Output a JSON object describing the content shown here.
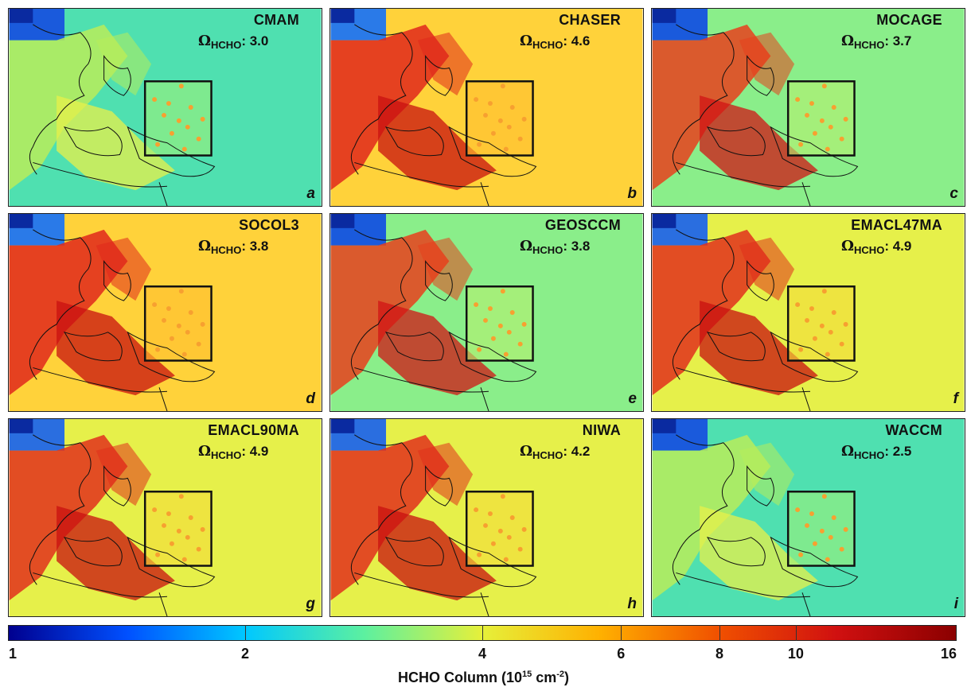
{
  "panels": [
    {
      "model": "CMAM",
      "omega_prefix": "Ω",
      "omega_sub": "HCHO",
      "omega_value": ": 3.0",
      "label": "a",
      "scheme": "cool"
    },
    {
      "model": "CHASER",
      "omega_prefix": "Ω",
      "omega_sub": "HCHO",
      "omega_value": ": 4.6",
      "label": "b",
      "scheme": "hot"
    },
    {
      "model": "MOCAGE",
      "omega_prefix": "Ω",
      "omega_sub": "HCHO",
      "omega_value": ": 3.7",
      "label": "c",
      "scheme": "mixed"
    },
    {
      "model": "SOCOL3",
      "omega_prefix": "Ω",
      "omega_sub": "HCHO",
      "omega_value": ": 3.8",
      "label": "d",
      "scheme": "hot"
    },
    {
      "model": "GEOSCCM",
      "omega_prefix": "Ω",
      "omega_sub": "HCHO",
      "omega_value": ": 3.8",
      "label": "e",
      "scheme": "mixed"
    },
    {
      "model": "EMACL47MA",
      "omega_prefix": "Ω",
      "omega_sub": "HCHO",
      "omega_value": ": 4.9",
      "label": "f",
      "scheme": "warm"
    },
    {
      "model": "EMACL90MA",
      "omega_prefix": "Ω",
      "omega_sub": "HCHO",
      "omega_value": ": 4.9",
      "label": "g",
      "scheme": "warm"
    },
    {
      "model": "NIWA",
      "omega_prefix": "Ω",
      "omega_sub": "HCHO",
      "omega_value": ": 4.2",
      "label": "h",
      "scheme": "warm"
    },
    {
      "model": "WACCM",
      "omega_prefix": "Ω",
      "omega_sub": "HCHO",
      "omega_value": ": 2.5",
      "label": "i",
      "scheme": "cool"
    }
  ],
  "colorbar": {
    "ticks": [
      "1",
      "2",
      "4",
      "6",
      "8",
      "10",
      "16"
    ],
    "tick_values": [
      1,
      2,
      4,
      6,
      8,
      10,
      16
    ],
    "title_prefix": "HCHO Column (10",
    "title_exp1": "15",
    "title_mid": " cm",
    "title_exp2": "-2",
    "title_suffix": ")",
    "colors": [
      "#00008f",
      "#0050ff",
      "#00c8ff",
      "#5cf0a0",
      "#e6f03a",
      "#ffb000",
      "#f05000",
      "#d01010",
      "#8b0000"
    ]
  }
}
